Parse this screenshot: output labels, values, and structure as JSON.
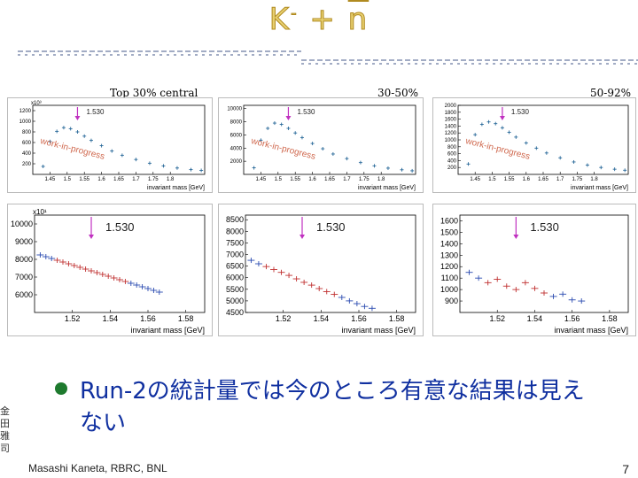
{
  "slide": {
    "title_main": "K",
    "title_sup": "-",
    "title_plus": " + ",
    "title_nbar": "n",
    "subtitle_labels": [
      "Top 30% central",
      "30-50%",
      "50-92%"
    ],
    "bullet": "Run-2の統計量では今のところ有意な結果は見えない",
    "stamp_text": "金田雅司",
    "footer": "Masashi Kaneta, RBRC, BNL",
    "page_number": "7",
    "colors": {
      "title_fill": "#e8d070",
      "bullet": "#1e7a2e",
      "text": "#1030a0",
      "marker": "#c030c0",
      "wip": "#d06a50"
    }
  },
  "chart_data": [
    {
      "type": "scatter",
      "name": "top-30-overview",
      "mark_label": "1.530",
      "watermark": "work-in-progress",
      "exponent": "x10³",
      "xlabel": "invariant mass [GeV]",
      "ylabel": "",
      "xlim": [
        1.4,
        1.9
      ],
      "ylim": [
        0,
        1300
      ],
      "x_ticks": [
        "1.45",
        "1.5",
        "1.55",
        "1.6",
        "1.65",
        "1.7",
        "1.75",
        "1.8"
      ],
      "y_ticks": [
        "200",
        "400",
        "600",
        "800",
        "1000",
        "1200"
      ],
      "x": [
        1.43,
        1.45,
        1.47,
        1.49,
        1.51,
        1.53,
        1.55,
        1.57,
        1.6,
        1.63,
        1.66,
        1.7,
        1.74,
        1.78,
        1.82,
        1.86,
        1.89
      ],
      "y": [
        150,
        620,
        810,
        880,
        860,
        800,
        720,
        640,
        540,
        440,
        360,
        280,
        210,
        160,
        120,
        90,
        75
      ]
    },
    {
      "type": "scatter",
      "name": "30-50-overview",
      "mark_label": "1.530",
      "watermark": "work-in-progress",
      "exponent": "",
      "xlabel": "invariant mass [GeV]",
      "ylabel": "",
      "xlim": [
        1.4,
        1.9
      ],
      "ylim": [
        0,
        10500
      ],
      "x_ticks": [
        "1.45",
        "1.5",
        "1.55",
        "1.6",
        "1.65",
        "1.7",
        "1.75",
        "1.8"
      ],
      "y_ticks": [
        "2000",
        "4000",
        "6000",
        "8000",
        "10000"
      ],
      "x": [
        1.43,
        1.45,
        1.47,
        1.49,
        1.51,
        1.53,
        1.55,
        1.57,
        1.6,
        1.63,
        1.66,
        1.7,
        1.74,
        1.78,
        1.82,
        1.86,
        1.89
      ],
      "y": [
        1000,
        5200,
        7000,
        7800,
        7600,
        7000,
        6300,
        5600,
        4700,
        3900,
        3100,
        2400,
        1800,
        1300,
        950,
        700,
        550
      ]
    },
    {
      "type": "scatter",
      "name": "50-92-overview",
      "mark_label": "1.530",
      "watermark": "work-in-progress",
      "exponent": "",
      "xlabel": "invariant mass [GeV]",
      "ylabel": "",
      "xlim": [
        1.4,
        1.9
      ],
      "ylim": [
        0,
        2000
      ],
      "x_ticks": [
        "1.45",
        "1.5",
        "1.55",
        "1.6",
        "1.65",
        "1.7",
        "1.75",
        "1.8"
      ],
      "y_ticks": [
        "200",
        "400",
        "600",
        "800",
        "1000",
        "1200",
        "1400",
        "1600",
        "1800",
        "2000"
      ],
      "x": [
        1.43,
        1.45,
        1.47,
        1.49,
        1.51,
        1.53,
        1.55,
        1.57,
        1.6,
        1.63,
        1.66,
        1.7,
        1.74,
        1.78,
        1.82,
        1.86,
        1.89
      ],
      "y": [
        300,
        1150,
        1450,
        1520,
        1470,
        1350,
        1220,
        1080,
        910,
        760,
        620,
        480,
        360,
        270,
        200,
        150,
        120
      ]
    },
    {
      "type": "scatter",
      "name": "top-30-zoom",
      "mark_label": "1.530",
      "exponent": "x10¹",
      "xlabel": "invariant mass [GeV]",
      "ylabel": "",
      "xlim": [
        1.5,
        1.59
      ],
      "ylim": [
        5000,
        10500
      ],
      "x_ticks": [
        "1.52",
        "1.54",
        "1.56",
        "1.58"
      ],
      "y_ticks": [
        "6000",
        "7000",
        "8000",
        "9000",
        "10000"
      ],
      "x": [
        1.503,
        1.506,
        1.509,
        1.512,
        1.515,
        1.518,
        1.521,
        1.524,
        1.527,
        1.53,
        1.533,
        1.536,
        1.539,
        1.542,
        1.545,
        1.548,
        1.551,
        1.554,
        1.557,
        1.56,
        1.563,
        1.566
      ],
      "y": [
        8250,
        8150,
        8050,
        7950,
        7850,
        7750,
        7650,
        7550,
        7450,
        7350,
        7250,
        7150,
        7050,
        6950,
        6850,
        6750,
        6650,
        6550,
        6450,
        6350,
        6250,
        6150
      ]
    },
    {
      "type": "scatter",
      "name": "30-50-zoom",
      "mark_label": "1.530",
      "exponent": "",
      "xlabel": "invariant mass [GeV]",
      "ylabel": "",
      "xlim": [
        1.5,
        1.59
      ],
      "ylim": [
        4500,
        8700
      ],
      "x_ticks": [
        "1.52",
        "1.54",
        "1.56",
        "1.58"
      ],
      "y_ticks": [
        "4500",
        "5000",
        "5500",
        "6000",
        "6500",
        "7000",
        "7500",
        "8000",
        "8500"
      ],
      "x": [
        1.503,
        1.507,
        1.511,
        1.515,
        1.519,
        1.523,
        1.527,
        1.531,
        1.535,
        1.539,
        1.543,
        1.547,
        1.551,
        1.555,
        1.559,
        1.563,
        1.567
      ],
      "y": [
        6750,
        6600,
        6480,
        6350,
        6230,
        6100,
        5950,
        5800,
        5680,
        5530,
        5400,
        5280,
        5150,
        5000,
        4880,
        4760,
        4680
      ]
    },
    {
      "type": "scatter",
      "name": "50-92-zoom",
      "mark_label": "1.530",
      "exponent": "",
      "xlabel": "invariant mass [GeV]",
      "ylabel": "",
      "xlim": [
        1.5,
        1.59
      ],
      "ylim": [
        800,
        1650
      ],
      "x_ticks": [
        "1.52",
        "1.54",
        "1.56",
        "1.58"
      ],
      "y_ticks": [
        "900",
        "1000",
        "1100",
        "1200",
        "1300",
        "1400",
        "1500",
        "1600"
      ],
      "x": [
        1.505,
        1.51,
        1.515,
        1.52,
        1.525,
        1.53,
        1.535,
        1.54,
        1.545,
        1.55,
        1.555,
        1.56,
        1.565
      ],
      "y": [
        1150,
        1100,
        1060,
        1090,
        1030,
        1000,
        1060,
        1010,
        970,
        940,
        960,
        910,
        900
      ]
    }
  ]
}
